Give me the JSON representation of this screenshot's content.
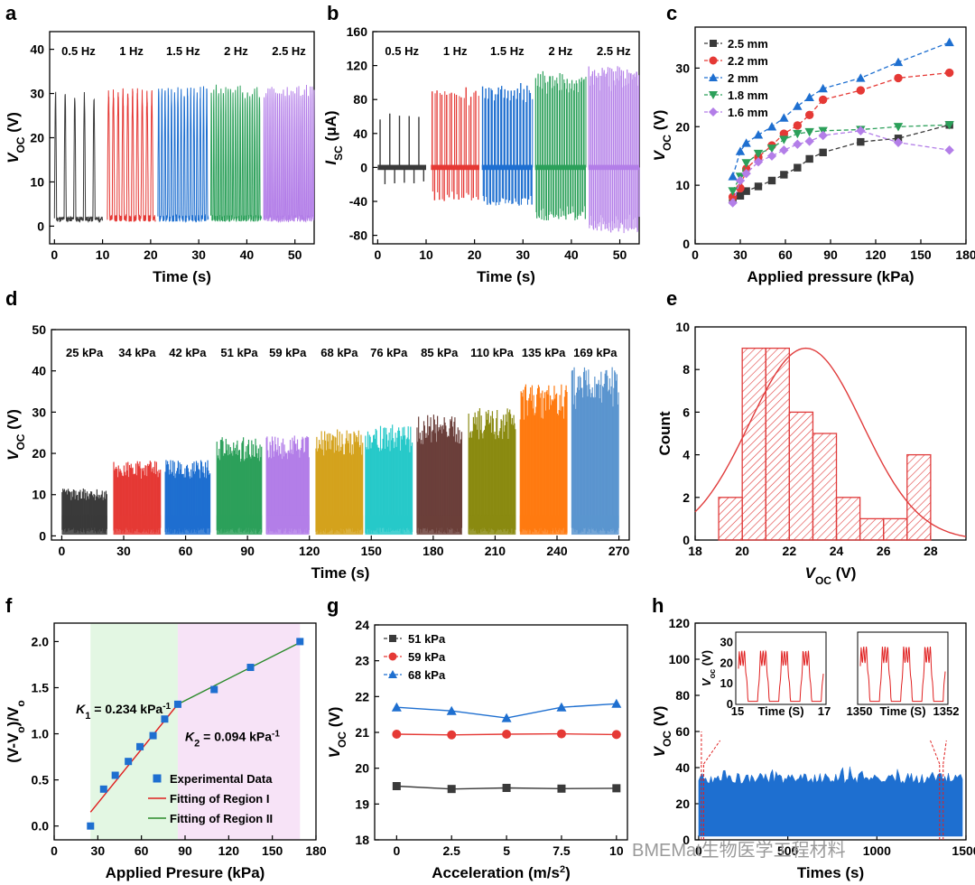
{
  "colors": {
    "black": "#3a3a3a",
    "red": "#e53935",
    "blue": "#1e6fd0",
    "green": "#2ca05a",
    "purple": "#b37ee8",
    "gold": "#d4a21c",
    "cyan": "#27c9c9",
    "brown": "#6b3f3a",
    "olive": "#8a8a10",
    "orange": "#ff7a10",
    "lightblue": "#5b95cf",
    "fitred": "#e02020",
    "fitgreen": "#2a8a2a",
    "region1": "#e3f7e3",
    "region2": "#f7e3f7",
    "bar": "#e03b3b"
  },
  "watermark": "BMEMat生物医学工程材料",
  "chart_data": [
    {
      "panel": "a",
      "type": "line",
      "xlabel": "Time (s)",
      "ylabel": "V_OC (V)",
      "xlim": [
        -1,
        54
      ],
      "ylim": [
        -4,
        44
      ],
      "xticks": [
        "0",
        "10",
        "20",
        "30",
        "40",
        "50"
      ],
      "yticks": [
        "0",
        "10",
        "20",
        "30",
        "40"
      ],
      "segments": [
        {
          "label": "0.5 Hz",
          "start": 0,
          "end": 10,
          "freq": 0.5,
          "peak": 31.5,
          "color": "black"
        },
        {
          "label": "1 Hz",
          "start": 11,
          "end": 21,
          "freq": 1,
          "peak": 31.5,
          "color": "red"
        },
        {
          "label": "1.5 Hz",
          "start": 21.5,
          "end": 32,
          "freq": 1.5,
          "peak": 32,
          "color": "blue"
        },
        {
          "label": "2 Hz",
          "start": 32.5,
          "end": 43,
          "freq": 2,
          "peak": 32,
          "color": "green"
        },
        {
          "label": "2.5 Hz",
          "start": 43.5,
          "end": 54,
          "freq": 2.5,
          "peak": 32,
          "color": "purple"
        }
      ]
    },
    {
      "panel": "b",
      "type": "line",
      "xlabel": "Time (s)",
      "ylabel": "I_SC (μA)",
      "xlim": [
        -1,
        54
      ],
      "ylim": [
        -90,
        160
      ],
      "xticks": [
        "0",
        "10",
        "20",
        "30",
        "40",
        "50"
      ],
      "yticks": [
        "-80",
        "-40",
        "0",
        "40",
        "80",
        "120",
        "160"
      ],
      "segments": [
        {
          "label": "0.5 Hz",
          "start": 0,
          "end": 10,
          "freq": 0.5,
          "peak": 65,
          "trough": -20,
          "color": "black"
        },
        {
          "label": "1 Hz",
          "start": 11,
          "end": 21,
          "freq": 1,
          "peak": 95,
          "trough": -40,
          "color": "red"
        },
        {
          "label": "1.5 Hz",
          "start": 21.5,
          "end": 32,
          "freq": 1.5,
          "peak": 100,
          "trough": -45,
          "color": "blue"
        },
        {
          "label": "2 Hz",
          "start": 32.5,
          "end": 43,
          "freq": 2,
          "peak": 115,
          "trough": -65,
          "color": "green"
        },
        {
          "label": "2.5 Hz",
          "start": 43.5,
          "end": 54,
          "freq": 2.5,
          "peak": 120,
          "trough": -78,
          "color": "purple"
        }
      ]
    },
    {
      "panel": "c",
      "type": "line",
      "xlabel": "Applied pressure (kPa)",
      "ylabel": "V_OC (V)",
      "xlim": [
        0,
        180
      ],
      "ylim": [
        0,
        37
      ],
      "xticks": [
        "0",
        "30",
        "60",
        "90",
        "120",
        "150",
        "180"
      ],
      "yticks": [
        "0",
        "10",
        "20",
        "30"
      ],
      "legend": "top-left",
      "x": [
        25,
        30,
        34,
        42,
        51,
        59,
        68,
        76,
        85,
        110,
        135,
        169
      ],
      "series": [
        {
          "name": "2.5 mm",
          "marker": "square",
          "color": "black",
          "values": [
            7.5,
            8.2,
            9.0,
            9.8,
            10.8,
            11.8,
            13.0,
            14.5,
            15.6,
            17.4,
            18.0,
            20.3
          ]
        },
        {
          "name": "2.2 mm",
          "marker": "circle",
          "color": "red",
          "values": [
            8.0,
            9.5,
            12.8,
            14.8,
            16.8,
            18.8,
            20.2,
            22.0,
            24.6,
            26.2,
            28.3,
            29.2
          ]
        },
        {
          "name": "2 mm",
          "marker": "triangle",
          "color": "blue",
          "values": [
            11.5,
            15.8,
            17.2,
            18.6,
            20.0,
            21.5,
            23.5,
            25.0,
            26.5,
            28.3,
            31.0,
            34.4
          ]
        },
        {
          "name": "1.8 mm",
          "marker": "triangle-down",
          "color": "green",
          "values": [
            9.0,
            11.5,
            13.8,
            15.4,
            16.3,
            17.8,
            18.8,
            19.1,
            19.3,
            19.5,
            20.0,
            20.3
          ]
        },
        {
          "name": "1.6 mm",
          "marker": "diamond",
          "color": "purple",
          "values": [
            7.0,
            10.8,
            12.0,
            14.0,
            15.0,
            16.0,
            17.0,
            17.5,
            18.5,
            19.3,
            17.3,
            16.0
          ]
        }
      ]
    },
    {
      "panel": "d",
      "type": "line",
      "xlabel": "Time (s)",
      "ylabel": "V_OC (V)",
      "xlim": [
        -5,
        275
      ],
      "ylim": [
        -1,
        50
      ],
      "xticks": [
        "0",
        "30",
        "60",
        "90",
        "120",
        "150",
        "180",
        "210",
        "240",
        "270"
      ],
      "yticks": [
        "0",
        "10",
        "20",
        "30",
        "40",
        "50"
      ],
      "segments": [
        {
          "label": "25 kPa",
          "start": 0,
          "end": 22,
          "peak": 11.5,
          "color": "black"
        },
        {
          "label": "34 kPa",
          "start": 25,
          "end": 48,
          "peak": 18.5,
          "color": "red"
        },
        {
          "label": "42 kPa",
          "start": 50,
          "end": 72,
          "peak": 18.5,
          "color": "blue"
        },
        {
          "label": "51 kPa",
          "start": 75,
          "end": 97,
          "peak": 24,
          "color": "green"
        },
        {
          "label": "59 kPa",
          "start": 99,
          "end": 120,
          "peak": 24.5,
          "color": "purple"
        },
        {
          "label": "68 kPa",
          "start": 123,
          "end": 146,
          "peak": 26,
          "color": "gold"
        },
        {
          "label": "76 kPa",
          "start": 147,
          "end": 170,
          "peak": 27,
          "color": "cyan"
        },
        {
          "label": "85 kPa",
          "start": 172,
          "end": 194,
          "peak": 29.5,
          "color": "brown"
        },
        {
          "label": "110 kPa",
          "start": 197,
          "end": 220,
          "peak": 31,
          "color": "olive"
        },
        {
          "label": "135 kPa",
          "start": 222,
          "end": 245,
          "peak": 37,
          "color": "orange"
        },
        {
          "label": "169 kPa",
          "start": 247,
          "end": 270,
          "peak": 41,
          "color": "lightblue"
        }
      ]
    },
    {
      "panel": "e",
      "type": "bar",
      "xlabel": "V_OC (V)",
      "ylabel": "Count",
      "xlim": [
        18,
        29.5
      ],
      "ylim": [
        0,
        10
      ],
      "xticks": [
        "18",
        "20",
        "22",
        "24",
        "26",
        "28"
      ],
      "yticks": [
        "0",
        "2",
        "4",
        "6",
        "8",
        "10"
      ],
      "bin_edges": [
        19,
        20,
        21,
        22,
        23,
        24,
        25,
        26,
        27,
        28
      ],
      "values": [
        2,
        9,
        9,
        6,
        5,
        2,
        1,
        1,
        4
      ],
      "fit": {
        "type": "gaussian",
        "mean": 22.7,
        "peak": 9,
        "sigma": 2.4
      }
    },
    {
      "panel": "f",
      "type": "scatter",
      "xlabel": "Applied Presure (kPa)",
      "ylabel": "(V-V_o)/V_o",
      "xlim": [
        0,
        180
      ],
      "ylim": [
        -0.15,
        2.2
      ],
      "xticks": [
        "0",
        "30",
        "60",
        "90",
        "120",
        "150",
        "180"
      ],
      "yticks": [
        "0.0",
        "0.5",
        "1.0",
        "1.5",
        "2.0"
      ],
      "legend": "bottom-right",
      "x": [
        25,
        34,
        42,
        51,
        59,
        68,
        76,
        85,
        110,
        135,
        169
      ],
      "values": [
        0.0,
        0.4,
        0.55,
        0.7,
        0.86,
        0.98,
        1.16,
        1.32,
        1.48,
        1.72,
        2.0
      ],
      "series_names": [
        "Experimental Data",
        "Fitting of Region I",
        "Fitting of Region II"
      ],
      "regions": [
        {
          "range": [
            25,
            85
          ]
        },
        {
          "range": [
            85,
            169
          ]
        }
      ],
      "fits": [
        {
          "from": 25,
          "to": 85,
          "y0": 0.15,
          "y1": 1.32
        },
        {
          "from": 85,
          "to": 169,
          "y0": 1.32,
          "y1": 1.99
        }
      ],
      "annotations": [
        {
          "symbol": "K",
          "sub": "1",
          "text": " = 0.234 kPa",
          "sup": "-1"
        },
        {
          "symbol": "K",
          "sub": "2",
          "text": " = 0.094 kPa",
          "sup": "-1"
        }
      ]
    },
    {
      "panel": "g",
      "type": "line",
      "xlabel": "Acceleration (m/s²)",
      "ylabel": "V_OC (V)",
      "xlim": [
        -1,
        10.5
      ],
      "ylim": [
        18,
        24
      ],
      "xticks": [
        "0",
        "2.5",
        "5",
        "7.5",
        "10"
      ],
      "yticks": [
        "18",
        "19",
        "20",
        "21",
        "22",
        "23",
        "24"
      ],
      "legend": "top-left",
      "x": [
        0,
        2.5,
        5,
        7.5,
        10
      ],
      "series": [
        {
          "name": "51 kPa",
          "marker": "square",
          "color": "black",
          "values": [
            19.5,
            19.42,
            19.45,
            19.43,
            19.44
          ]
        },
        {
          "name": "59 kPa",
          "marker": "circle",
          "color": "red",
          "values": [
            20.95,
            20.93,
            20.95,
            20.96,
            20.94
          ]
        },
        {
          "name": "68 kPa",
          "marker": "triangle",
          "color": "blue",
          "values": [
            21.7,
            21.6,
            21.4,
            21.7,
            21.8
          ]
        }
      ]
    },
    {
      "panel": "h",
      "type": "area",
      "xlabel": "Times (s)",
      "ylabel": "V_OC (V)",
      "xlim": [
        -20,
        1500
      ],
      "ylim": [
        0,
        120
      ],
      "xticks": [
        "0",
        "500",
        "1000",
        "1500"
      ],
      "yticks": [
        "0",
        "20",
        "40",
        "60",
        "80",
        "100",
        "120"
      ],
      "band": {
        "low": 2,
        "high": 37,
        "peak": 40,
        "color": "blue"
      },
      "insets": [
        {
          "xlabel": "Time (S)",
          "ylabel": "V_OC (V)",
          "xticks": [
            "15",
            "17"
          ],
          "yticks": [
            "0",
            "10",
            "20",
            "30"
          ],
          "ylim": [
            0,
            35
          ],
          "peak": 26,
          "cycles": 4
        },
        {
          "xlabel": "Time (S)",
          "ylabel": "",
          "xticks": [
            "1350",
            "1352"
          ],
          "yticks": [],
          "ylim": [
            0,
            35
          ],
          "peak": 28,
          "cycles": 4
        }
      ]
    }
  ]
}
